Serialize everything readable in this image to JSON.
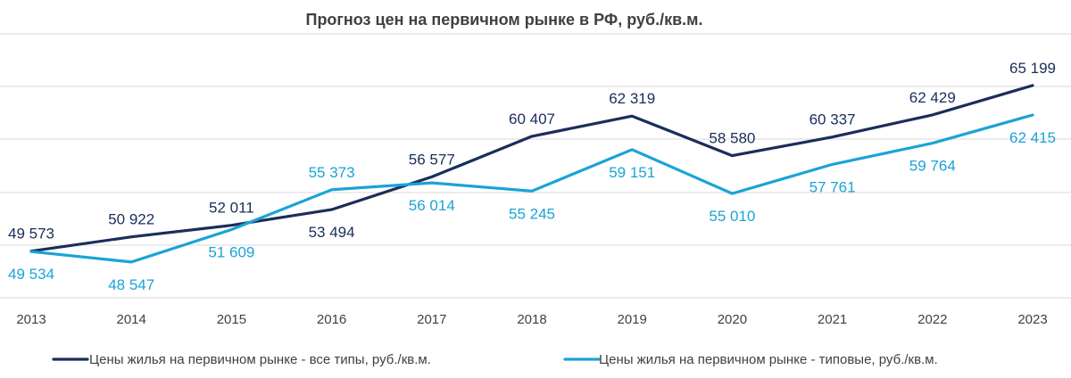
{
  "chart_data": {
    "type": "line",
    "title": "Прогноз цен на первичном рынке в РФ, руб./кв.м.",
    "xlabel": "",
    "ylabel": "",
    "categories": [
      "2013",
      "2014",
      "2015",
      "2016",
      "2017",
      "2018",
      "2019",
      "2020",
      "2021",
      "2022",
      "2023"
    ],
    "ylim": [
      45000,
      68000
    ],
    "grid": true,
    "legend": "bottom",
    "series": [
      {
        "name": "Цены жилья на первичном рынке - все типы, руб./кв.м.",
        "color": "#1a2e5a",
        "values": [
          49573,
          50922,
          52011,
          53494,
          56577,
          60407,
          62319,
          58580,
          60337,
          62429,
          65199
        ],
        "labels": [
          "49 573",
          "50 922",
          "52 011",
          "53 494",
          "56 577",
          "60 407",
          "62 319",
          "58 580",
          "60 337",
          "62 429",
          "65 199"
        ],
        "label_positions": [
          "above",
          "above",
          "above",
          "below",
          "above",
          "above",
          "above",
          "above",
          "above",
          "above",
          "above"
        ]
      },
      {
        "name": "Цены жилья на первичном рынке - типовые, руб./кв.м.",
        "color": "#1aa3d6",
        "values": [
          49534,
          48547,
          51609,
          55373,
          56014,
          55245,
          59151,
          55010,
          57761,
          59764,
          62415
        ],
        "labels": [
          "49 534",
          "48 547",
          "51 609",
          "55 373",
          "56 014",
          "55 245",
          "59 151",
          "55 010",
          "57 761",
          "59 764",
          "62 415"
        ],
        "label_positions": [
          "below",
          "below",
          "below",
          "above",
          "below",
          "below",
          "below",
          "below",
          "below",
          "below",
          "below"
        ]
      }
    ]
  }
}
